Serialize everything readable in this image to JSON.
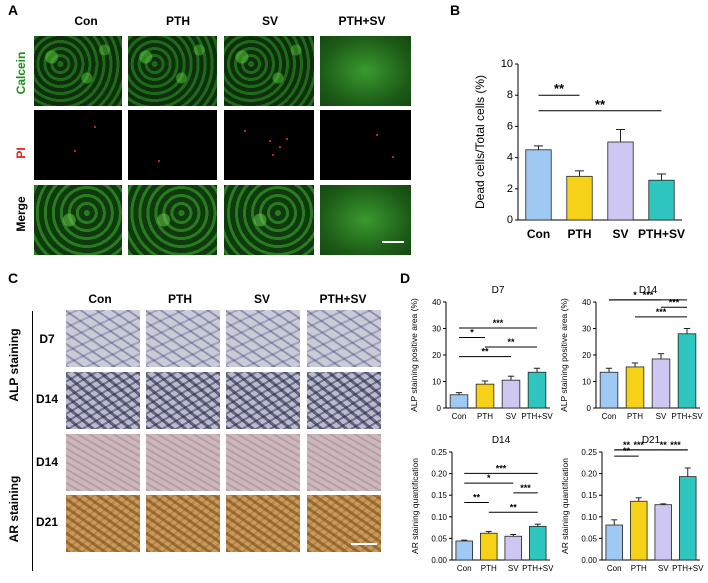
{
  "panels": {
    "a": "A",
    "b": "B",
    "c": "C",
    "d": "D"
  },
  "panel_a": {
    "columns": [
      "Con",
      "PTH",
      "SV",
      "PTH+SV"
    ],
    "rows": [
      "Calcein",
      "PI",
      "Merge"
    ],
    "row_colors": [
      "#1a8f1a",
      "#e02020",
      "#000000"
    ]
  },
  "panel_c": {
    "columns": [
      "Con",
      "PTH",
      "SV",
      "PTH+SV"
    ],
    "rows": [
      "D7",
      "D14",
      "D14",
      "D21"
    ],
    "groups": [
      "ALP staining",
      "AR staining"
    ]
  },
  "colors": {
    "con": "#9fc8f2",
    "pth": "#f5d118",
    "sv": "#cdc7f2",
    "pthsv": "#2fc6bf"
  },
  "chart_data": [
    {
      "type": "bar",
      "id": "B",
      "categories": [
        "Con",
        "PTH",
        "SV",
        "PTH+SV"
      ],
      "values": [
        4.5,
        2.8,
        5.0,
        2.55
      ],
      "errors": [
        0.25,
        0.35,
        0.8,
        0.4
      ],
      "title": "",
      "xlabel": "",
      "ylabel": "Dead cells/Total cells (%)",
      "ylim": [
        0,
        10
      ],
      "yticks": [
        "0",
        "2",
        "4",
        "6",
        "8",
        "10"
      ],
      "significance": [
        {
          "from": 0,
          "to": 1,
          "label": "**"
        },
        {
          "from": 0,
          "to": 3,
          "label": "**"
        }
      ]
    },
    {
      "type": "bar",
      "id": "D-ALP-D7",
      "categories": [
        "Con",
        "PTH",
        "SV",
        "PTH+SV"
      ],
      "values": [
        5.0,
        9.0,
        10.5,
        13.5
      ],
      "errors": [
        0.8,
        1.2,
        1.5,
        1.5
      ],
      "title": "D7",
      "ylabel": "ALP staining positive area (%)",
      "ylim": [
        0,
        40
      ],
      "yticks": [
        "0",
        "10",
        "20",
        "30",
        "40"
      ],
      "significance": [
        {
          "from": 0,
          "to": 3,
          "label": "***"
        },
        {
          "from": 0,
          "to": 1,
          "label": "*"
        },
        {
          "from": 1,
          "to": 3,
          "label": "**"
        },
        {
          "from": 0,
          "to": 2,
          "label": "**"
        }
      ]
    },
    {
      "type": "bar",
      "id": "D-ALP-D14",
      "categories": [
        "Con",
        "PTH",
        "SV",
        "PTH+SV"
      ],
      "values": [
        13.5,
        15.5,
        18.5,
        28.0
      ],
      "errors": [
        1.5,
        1.5,
        2.0,
        2.0
      ],
      "title": "D14",
      "ylabel": "ALP staining positive area (%)",
      "ylim": [
        0,
        40
      ],
      "yticks": [
        "0",
        "10",
        "20",
        "30",
        "40"
      ],
      "significance": [
        {
          "from": 0,
          "to": 3,
          "label": "***"
        },
        {
          "from": 0,
          "to": 2,
          "label": "*"
        },
        {
          "from": 2,
          "to": 3,
          "label": "***"
        },
        {
          "from": 1,
          "to": 3,
          "label": "***"
        }
      ]
    },
    {
      "type": "bar",
      "id": "D-AR-D14",
      "categories": [
        "Con",
        "PTH",
        "SV",
        "PTH+SV"
      ],
      "values": [
        0.044,
        0.062,
        0.055,
        0.078
      ],
      "errors": [
        0.002,
        0.004,
        0.004,
        0.005
      ],
      "title": "D14",
      "ylabel": "AR staining quantification",
      "ylim": [
        0,
        0.25
      ],
      "yticks": [
        "0.00",
        "0.05",
        "0.10",
        "0.15",
        "0.20",
        "0.25"
      ],
      "significance": [
        {
          "from": 0,
          "to": 3,
          "label": "***"
        },
        {
          "from": 0,
          "to": 2,
          "label": "*"
        },
        {
          "from": 2,
          "to": 3,
          "label": "***"
        },
        {
          "from": 0,
          "to": 1,
          "label": "**"
        },
        {
          "from": 1,
          "to": 3,
          "label": "**"
        }
      ]
    },
    {
      "type": "bar",
      "id": "D-AR-D21",
      "categories": [
        "Con",
        "PTH",
        "SV",
        "PTH+SV"
      ],
      "values": [
        0.081,
        0.136,
        0.128,
        0.193
      ],
      "errors": [
        0.012,
        0.008,
        0.002,
        0.02
      ],
      "title": "D21",
      "ylabel": "AR staining quantification",
      "ylim": [
        0,
        0.25
      ],
      "yticks": [
        "0.00",
        "0.05",
        "0.10",
        "0.15",
        "0.20",
        "0.25"
      ],
      "significance": [
        {
          "from": 2,
          "to": 3,
          "label": "***"
        },
        {
          "from": 0,
          "to": 2,
          "label": "***"
        },
        {
          "from": 0,
          "to": 1,
          "label": "**"
        },
        {
          "from": 1,
          "to": 3,
          "label": "**"
        },
        {
          "from": 0,
          "to": 1,
          "label": "**"
        }
      ]
    }
  ]
}
